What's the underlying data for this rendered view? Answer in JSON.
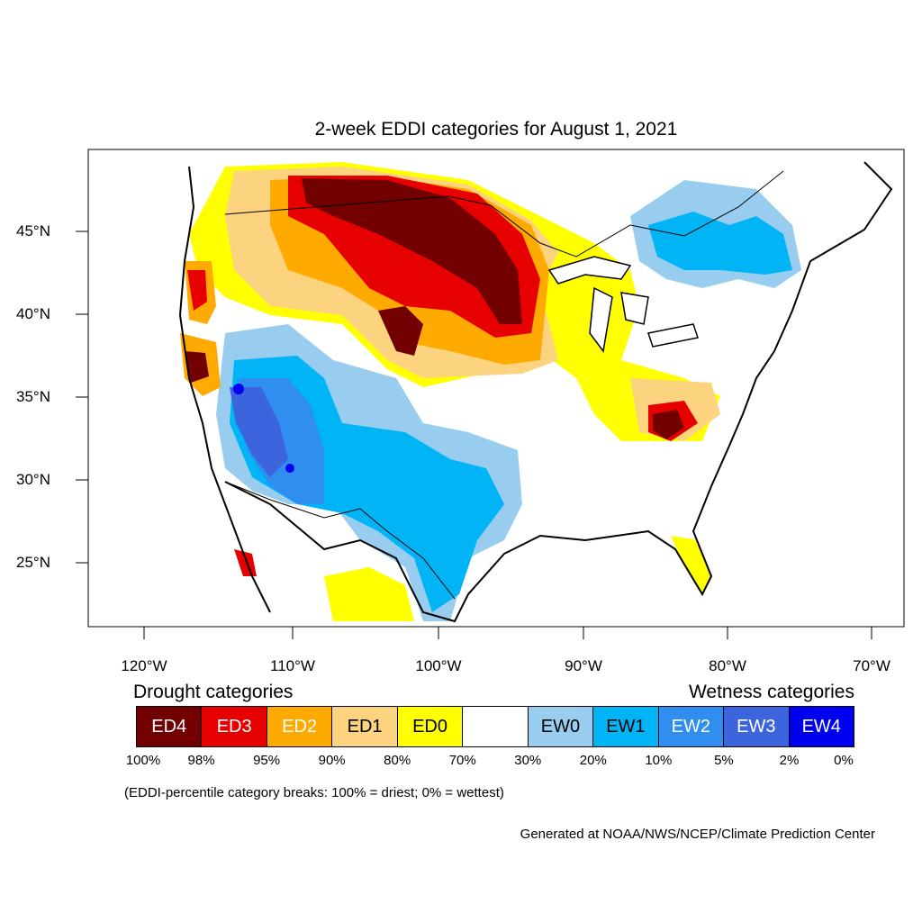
{
  "title": "2-week EDDI categories for August 1, 2021",
  "axes": {
    "lon_ticks": [
      "120°W",
      "110°W",
      "100°W",
      "90°W",
      "80°W",
      "70°W"
    ],
    "lat_ticks": [
      "45°N",
      "40°N",
      "35°N",
      "30°N",
      "25°N"
    ]
  },
  "legend": {
    "drought_heading": "Drought categories",
    "wetness_heading": "Wetness categories",
    "categories": [
      {
        "label": "ED4",
        "color": "#730000",
        "text_color": "#ffffff"
      },
      {
        "label": "ED3",
        "color": "#e60000",
        "text_color": "#ffffff"
      },
      {
        "label": "ED2",
        "color": "#ffaa00",
        "text_color": "#ffffff"
      },
      {
        "label": "ED1",
        "color": "#fcd37f",
        "text_color": "#000000"
      },
      {
        "label": "ED0",
        "color": "#ffff00",
        "text_color": "#000000"
      },
      {
        "label": "",
        "color": "#ffffff",
        "text_color": "#000000"
      },
      {
        "label": "EW0",
        "color": "#98cdef",
        "text_color": "#000000"
      },
      {
        "label": "EW1",
        "color": "#00b4f5",
        "text_color": "#000000"
      },
      {
        "label": "EW2",
        "color": "#2f8ef0",
        "text_color": "#ffffff"
      },
      {
        "label": "EW3",
        "color": "#3c64dc",
        "text_color": "#ffffff"
      },
      {
        "label": "EW4",
        "color": "#0000f0",
        "text_color": "#ffffff"
      }
    ],
    "percentiles": [
      "100%",
      "98%",
      "95%",
      "90%",
      "80%",
      "70%",
      "30%",
      "20%",
      "10%",
      "5%",
      "2%",
      "0%"
    ]
  },
  "note": "(EDDI-percentile category breaks: 100% = driest; 0% = wettest)",
  "credit": "Generated at NOAA/NWS/NCEP/Climate Prediction Center"
}
